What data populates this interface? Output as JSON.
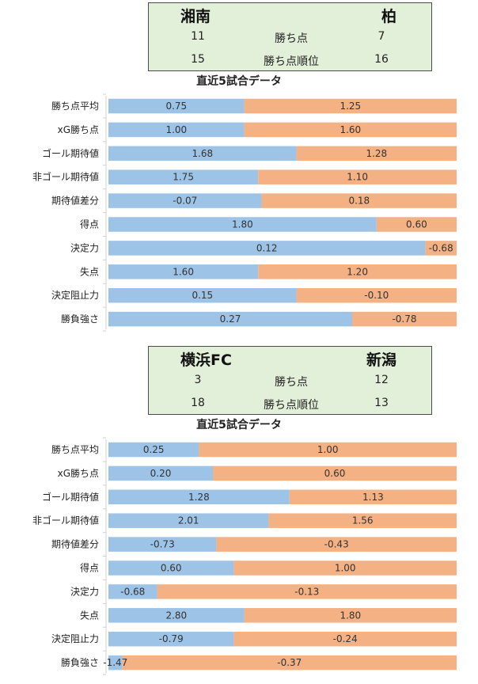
{
  "colors": {
    "home": "#9dc3e6",
    "away": "#f4b183",
    "scorebox_bg": "#e2efd9"
  },
  "matches": [
    {
      "home_team": "湘南",
      "away_team": "柏",
      "score_rows": [
        {
          "home": "11",
          "label": "勝ち点",
          "away": "7"
        },
        {
          "home": "15",
          "label": "勝ち点順位",
          "away": "16"
        }
      ],
      "chart_title": "直近5試合データ"
    },
    {
      "home_team": "横浜FC",
      "away_team": "新潟",
      "score_rows": [
        {
          "home": "3",
          "label": "勝ち点",
          "away": "12"
        },
        {
          "home": "18",
          "label": "勝ち点順位",
          "away": "13"
        }
      ],
      "chart_title": "直近5試合データ"
    }
  ],
  "chart_data": [
    {
      "type": "bar",
      "stacked": "100%-horizontal",
      "categories": [
        "勝ち点平均",
        "xG勝ち点",
        "ゴール期待値",
        "非ゴール期待値",
        "期待値差分",
        "得点",
        "決定力",
        "失点",
        "決定阻止力",
        "勝負強さ"
      ],
      "series": [
        {
          "name": "湘南",
          "labels": [
            "0.75",
            "1.00",
            "1.68",
            "1.75",
            "-0.07",
            "1.80",
            "0.12",
            "1.60",
            "0.15",
            "0.27"
          ],
          "share": [
            0.39,
            0.39,
            0.54,
            0.43,
            0.44,
            0.77,
            0.91,
            0.43,
            0.54,
            0.7
          ]
        },
        {
          "name": "柏",
          "labels": [
            "1.25",
            "1.60",
            "1.28",
            "1.10",
            "0.18",
            "0.60",
            "-0.68",
            "1.20",
            "-0.10",
            "-0.78"
          ],
          "share": [
            0.61,
            0.61,
            0.46,
            0.57,
            0.56,
            0.23,
            0.09,
            0.57,
            0.46,
            0.3
          ]
        }
      ]
    },
    {
      "type": "bar",
      "stacked": "100%-horizontal",
      "categories": [
        "勝ち点平均",
        "xG勝ち点",
        "ゴール期待値",
        "非ゴール期待値",
        "期待値差分",
        "得点",
        "決定力",
        "失点",
        "決定阻止力",
        "勝負強さ"
      ],
      "series": [
        {
          "name": "横浜FC",
          "labels": [
            "0.25",
            "0.20",
            "1.28",
            "2.01",
            "-0.73",
            "0.60",
            "-0.68",
            "2.80",
            "-0.79",
            "-1.47"
          ],
          "share": [
            0.26,
            0.3,
            0.52,
            0.46,
            0.31,
            0.36,
            0.14,
            0.39,
            0.36,
            0.04
          ]
        },
        {
          "name": "新潟",
          "labels": [
            "1.00",
            "0.60",
            "1.13",
            "1.56",
            "-0.43",
            "1.00",
            "-0.13",
            "1.80",
            "-0.24",
            "-0.37"
          ],
          "share": [
            0.74,
            0.7,
            0.48,
            0.54,
            0.69,
            0.64,
            0.86,
            0.61,
            0.64,
            0.96
          ]
        }
      ]
    }
  ]
}
